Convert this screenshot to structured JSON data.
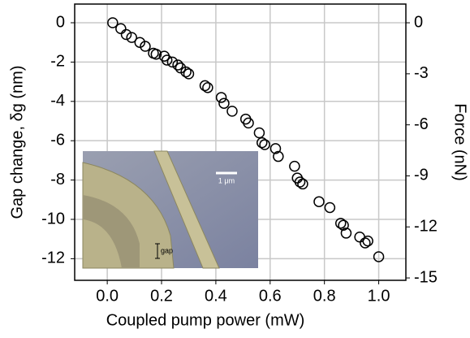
{
  "chart_data": {
    "type": "scatter",
    "x_label": "Coupled pump power (mW)",
    "y_label": "Gap change, δg (nm)",
    "y2_label": "Force (nN)",
    "xlim": [
      -0.12,
      1.1
    ],
    "ylim": [
      -13.1,
      0.95
    ],
    "y2lim": [
      -15.14,
      1.1
    ],
    "xticks": [
      {
        "value": 0,
        "label": "0.0"
      },
      {
        "value": 0.2,
        "label": "0.2"
      },
      {
        "value": 0.4,
        "label": "0.4"
      },
      {
        "value": 0.6,
        "label": "0.6"
      },
      {
        "value": 0.8,
        "label": "0.8"
      },
      {
        "value": 1,
        "label": "1.0"
      }
    ],
    "yticks": [
      0,
      -2,
      -4,
      -6,
      -8,
      -10,
      -12
    ],
    "y2ticks": [
      0,
      -3,
      -6,
      -9,
      -12,
      -15
    ],
    "grid": true,
    "series": [
      {
        "color": "#000000",
        "x": [
          0.02,
          0.05,
          0.07,
          0.09,
          0.12,
          0.14,
          0.17,
          0.18,
          0.21,
          0.22,
          0.24,
          0.26,
          0.27,
          0.29,
          0.3,
          0.36,
          0.37,
          0.42,
          0.43,
          0.46,
          0.51,
          0.52,
          0.56,
          0.57,
          0.58,
          0.62,
          0.63,
          0.69,
          0.7,
          0.71,
          0.72,
          0.78,
          0.82,
          0.86,
          0.87,
          0.88,
          0.93,
          0.95,
          0.96,
          1.0
        ],
        "values": [
          0,
          -0.3,
          -0.6,
          -0.75,
          -1.0,
          -1.2,
          -1.55,
          -1.6,
          -1.7,
          -1.9,
          -2.0,
          -2.15,
          -2.3,
          -2.5,
          -2.6,
          -3.2,
          -3.3,
          -3.8,
          -4.1,
          -4.5,
          -4.9,
          -5.1,
          -5.6,
          -6.1,
          -6.2,
          -6.4,
          -6.8,
          -7.3,
          -7.9,
          -8.1,
          -8.2,
          -9.1,
          -9.4,
          -10.2,
          -10.3,
          -10.7,
          -10.9,
          -11.2,
          -11.1,
          -11.9
        ]
      }
    ]
  },
  "inset": {
    "scale_label": "1 μm",
    "gap_label": "gap"
  }
}
